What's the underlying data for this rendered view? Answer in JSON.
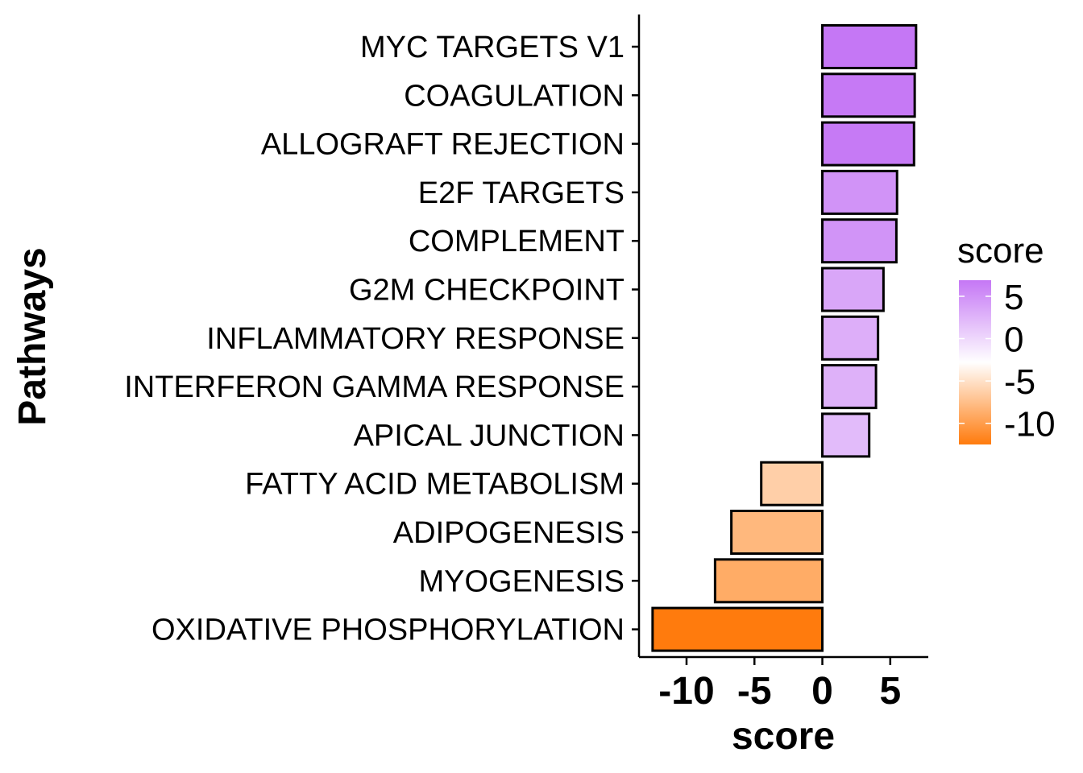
{
  "chart_data": {
    "type": "bar",
    "orientation": "horizontal",
    "categories": [
      "MYC TARGETS V1",
      "COAGULATION",
      "ALLOGRAFT REJECTION",
      "E2F TARGETS",
      "COMPLEMENT",
      "G2M CHECKPOINT",
      "INFLAMMATORY RESPONSE",
      "INTERFERON GAMMA RESPONSE",
      "APICAL JUNCTION",
      "FATTY ACID METABOLISM",
      "ADIPOGENESIS",
      "MYOGENESIS",
      "OXIDATIVE PHOSPHORYLATION"
    ],
    "values": [
      6.9,
      6.8,
      6.75,
      5.5,
      5.45,
      4.5,
      4.1,
      3.95,
      3.45,
      -4.5,
      -6.7,
      -7.9,
      -12.5
    ],
    "xlabel": "score",
    "ylabel": "Pathways",
    "xlim": [
      -13.5,
      7.8
    ],
    "x_ticks": [
      -10,
      -5,
      0,
      5
    ],
    "x_tick_labels": [
      "-10",
      "-5",
      "0",
      "5"
    ],
    "grid": false,
    "legend": {
      "title": "score",
      "position": "right",
      "type": "colorbar",
      "range": [
        -12.5,
        6.9
      ],
      "ticks": [
        5,
        0,
        -5,
        -10
      ],
      "tick_labels": [
        "5",
        "0",
        "-5",
        "-10"
      ],
      "colors": {
        "high": "#c577f5",
        "mid": "#ffffff",
        "low": "#ff7b0d"
      }
    }
  }
}
